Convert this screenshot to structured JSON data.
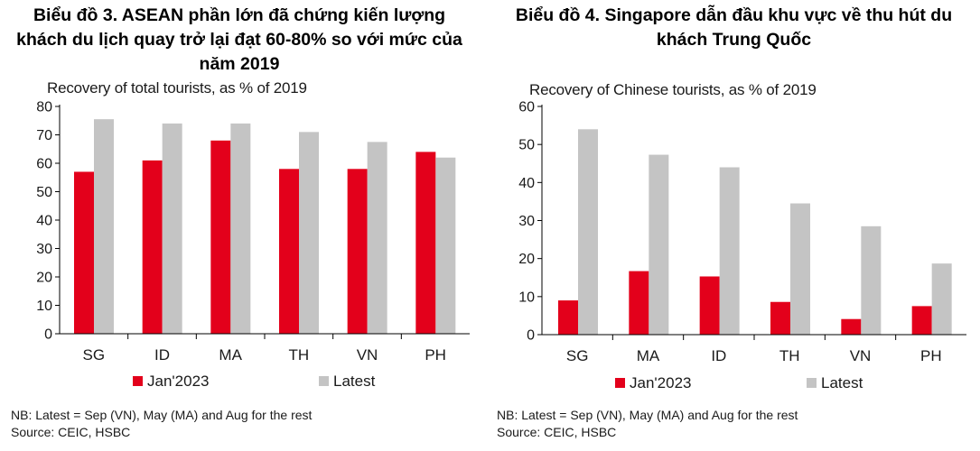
{
  "left": {
    "title": "Biểu đồ 3. ASEAN phần lớn đã chứng kiến lượng\nkhách du lịch quay trở lại đạt 60-80% so với mức của\nnăm 2019",
    "note": "NB: Latest = Sep (VN), May (MA) and Aug for the rest",
    "source": "Source: CEIC, HSBC"
  },
  "right": {
    "title": "Biểu đồ 4. Singapore dẫn đầu khu vực về thu hút du\nkhách Trung Quốc",
    "note": "NB: Latest = Sep (VN), May (MA) and Aug for the rest",
    "source": "Source: CEIC, HSBC"
  },
  "colors": {
    "jan": "#e3001b",
    "latest": "#c4c4c4",
    "axis": "#000000"
  },
  "chart_data": [
    {
      "type": "bar",
      "title": "Recovery of total  tourists,  as % of 2019",
      "categories": [
        "SG",
        "ID",
        "MA",
        "TH",
        "VN",
        "PH"
      ],
      "series": [
        {
          "name": "Jan'2023",
          "values": [
            57,
            61,
            68,
            58,
            58,
            64
          ]
        },
        {
          "name": "Latest",
          "values": [
            75.5,
            74,
            74,
            71,
            67.5,
            62
          ]
        }
      ],
      "ylim": [
        0,
        80
      ],
      "yticks": [
        0,
        10,
        20,
        30,
        40,
        50,
        60,
        70,
        80
      ],
      "grid": false,
      "legend": "bottom"
    },
    {
      "type": "bar",
      "title": "Recovery of Chinese  tourists,  as % of 2019",
      "categories": [
        "SG",
        "MA",
        "ID",
        "TH",
        "VN",
        "PH"
      ],
      "series": [
        {
          "name": "Jan'2023",
          "values": [
            9,
            16.7,
            15.3,
            8.6,
            4.1,
            7.5
          ]
        },
        {
          "name": "Latest",
          "values": [
            54,
            47.3,
            44,
            34.5,
            28.5,
            18.7
          ]
        }
      ],
      "ylim": [
        0,
        60
      ],
      "yticks": [
        0,
        10,
        20,
        30,
        40,
        50,
        60
      ],
      "grid": false,
      "legend": "bottom"
    }
  ]
}
